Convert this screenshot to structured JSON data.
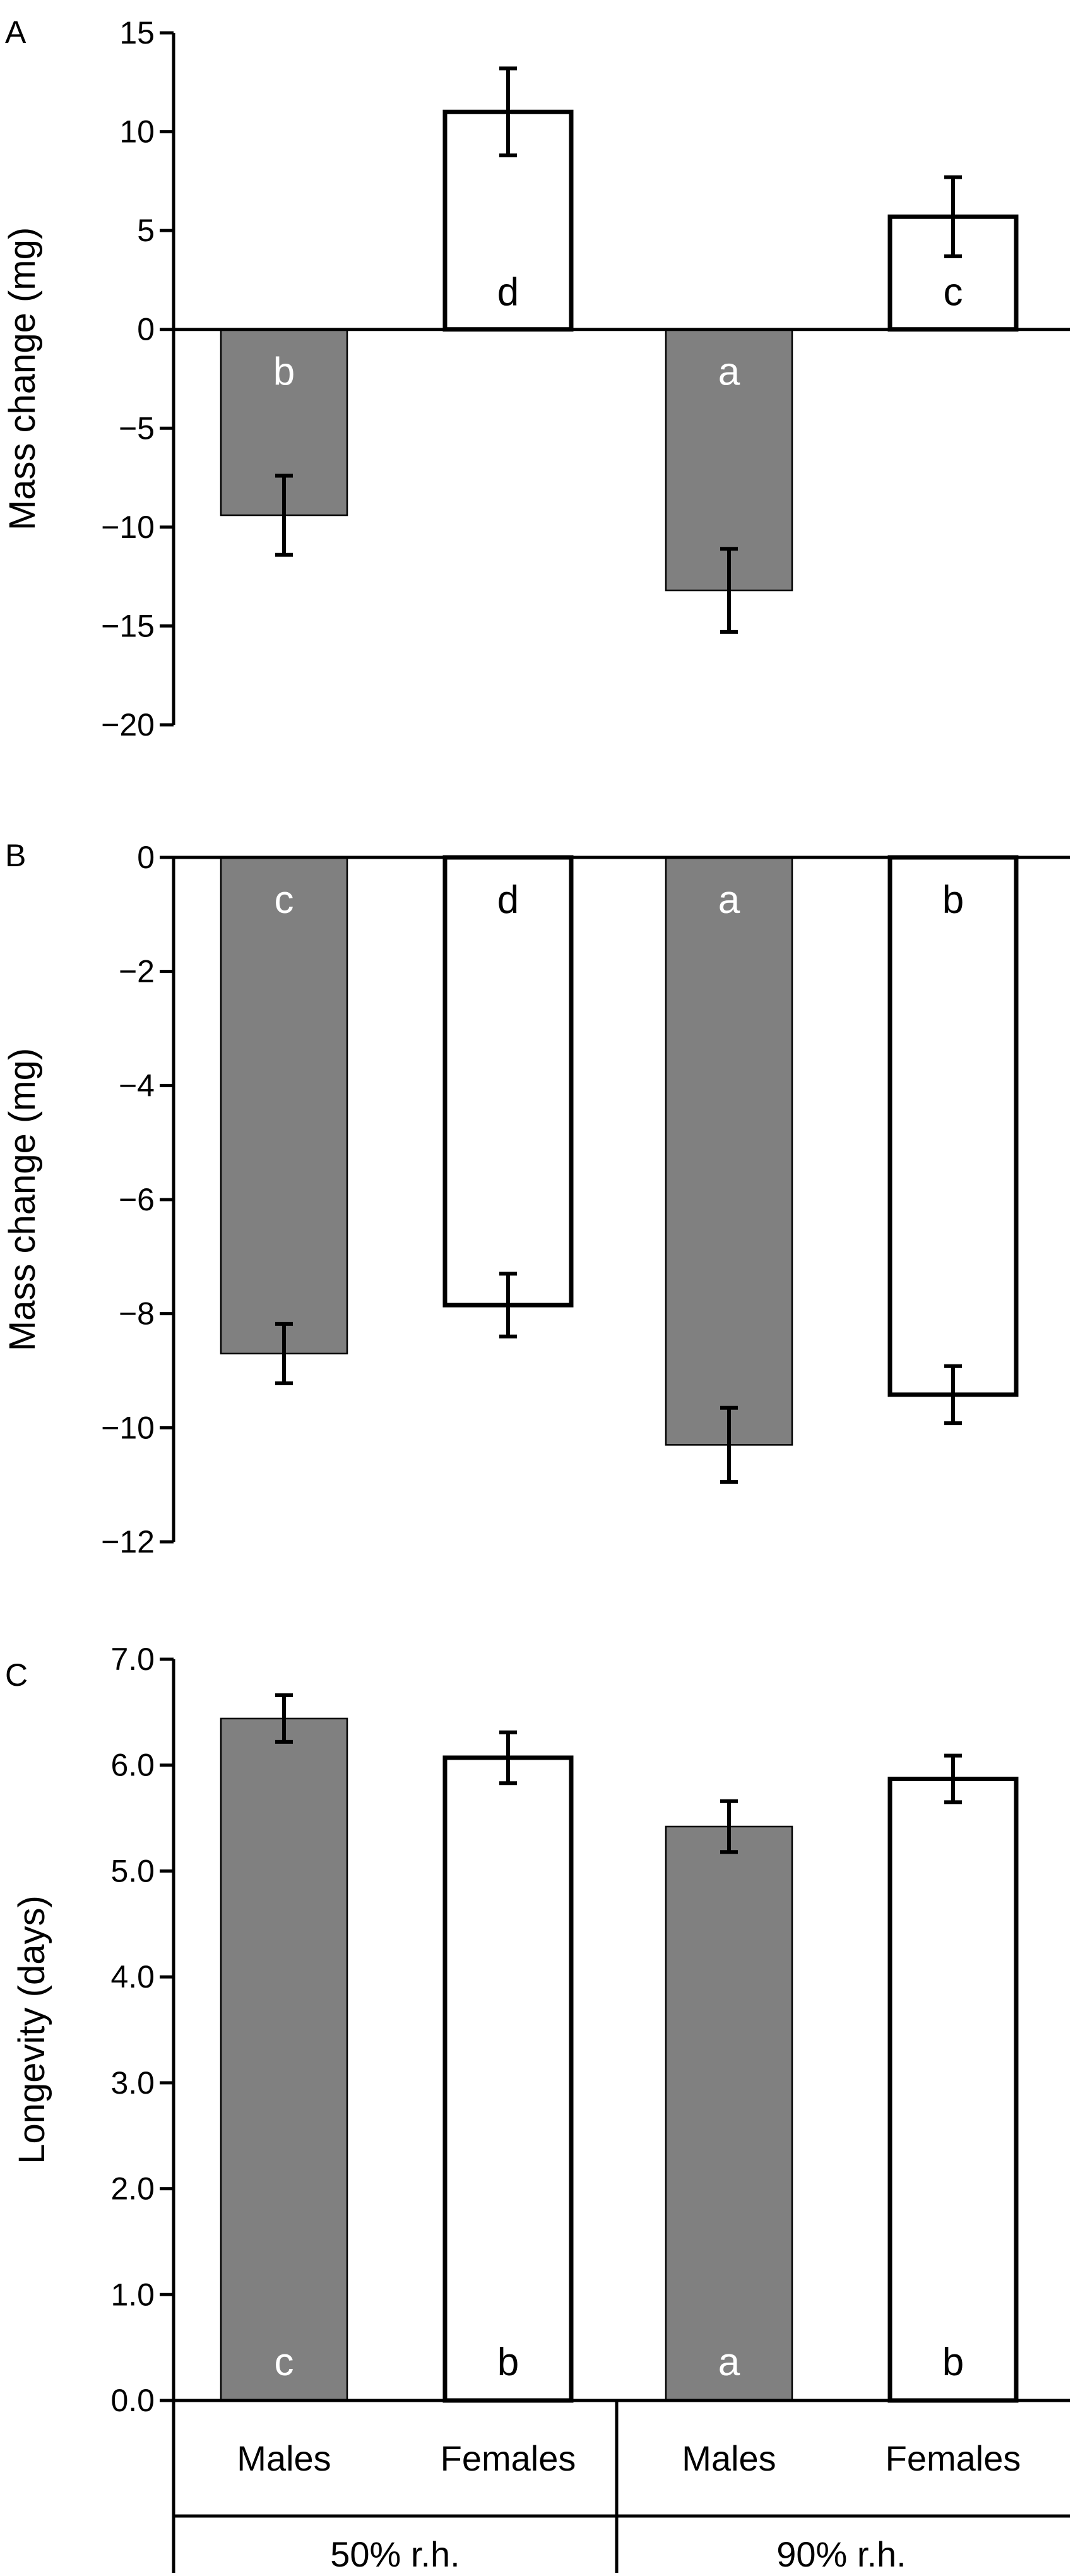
{
  "colors": {
    "males": "#808080",
    "females": "#ffffff",
    "stroke": "#000000",
    "letter_on_dark": "#ffffff",
    "letter_on_light": "#000000"
  },
  "x_axis": {
    "groups": [
      {
        "label": "50% r.h.",
        "categories": [
          "Males",
          "Females"
        ]
      },
      {
        "label": "90% r.h.",
        "categories": [
          "Males",
          "Females"
        ]
      }
    ]
  },
  "chart_data": [
    {
      "type": "bar",
      "panel": "A",
      "ylabel": "Mass change (mg)",
      "ylim": [
        -20,
        15
      ],
      "yticks": [
        "15",
        "10",
        "5",
        "0",
        "−5",
        "−10",
        "−15",
        "−20"
      ],
      "ytick_values": [
        15,
        10,
        5,
        0,
        -5,
        -10,
        -15,
        -20
      ],
      "categories": [
        "Males 50% r.h.",
        "Females 50% r.h.",
        "Males 90% r.h.",
        "Females 90% r.h."
      ],
      "values": [
        -9.4,
        11.0,
        -13.2,
        5.7
      ],
      "errors": [
        2.0,
        2.2,
        2.1,
        2.0
      ],
      "letters": [
        "b",
        "d",
        "a",
        "c"
      ]
    },
    {
      "type": "bar",
      "panel": "B",
      "ylabel": "Mass change (mg)",
      "ylim": [
        -12,
        0
      ],
      "yticks": [
        "0",
        "−2",
        "−4",
        "−6",
        "−8",
        "−10",
        "−12"
      ],
      "ytick_values": [
        0,
        -2,
        -4,
        -6,
        -8,
        -10,
        -12
      ],
      "categories": [
        "Males 50% r.h.",
        "Females 50% r.h.",
        "Males 90% r.h.",
        "Females 90% r.h."
      ],
      "values": [
        -8.7,
        -7.85,
        -10.3,
        -9.42
      ],
      "errors": [
        0.52,
        0.55,
        0.65,
        0.5
      ],
      "letters": [
        "c",
        "d",
        "a",
        "b"
      ]
    },
    {
      "type": "bar",
      "panel": "C",
      "ylabel": "Longevity (days)",
      "ylim": [
        0,
        7
      ],
      "yticks": [
        "7.0",
        "6.0",
        "5.0",
        "4.0",
        "3.0",
        "2.0",
        "1.0",
        "0.0"
      ],
      "ytick_values": [
        7,
        6,
        5,
        4,
        3,
        2,
        1,
        0
      ],
      "categories": [
        "Males 50% r.h.",
        "Females 50% r.h.",
        "Males 90% r.h.",
        "Females 90% r.h."
      ],
      "values": [
        6.44,
        6.07,
        5.42,
        5.87
      ],
      "errors": [
        0.22,
        0.24,
        0.24,
        0.22
      ],
      "letters": [
        "c",
        "b",
        "a",
        "b"
      ]
    }
  ]
}
